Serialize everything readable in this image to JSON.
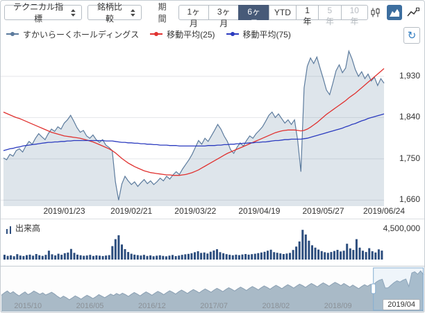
{
  "toolbar": {
    "technical_label": "テクニカル指標",
    "compare_label": "銘柄比較",
    "period_label": "期間",
    "periods": [
      {
        "label": "1ヶ月",
        "state": "normal"
      },
      {
        "label": "3ヶ月",
        "state": "normal"
      },
      {
        "label": "6ヶ月",
        "state": "active"
      },
      {
        "label": "YTD",
        "state": "normal"
      },
      {
        "label": "1年",
        "state": "normal"
      },
      {
        "label": "5年",
        "state": "disabled"
      },
      {
        "label": "10年",
        "state": "disabled"
      }
    ],
    "chart_type_icons": [
      "candlestick-chart-icon",
      "area-chart-icon",
      "line-chart-icon"
    ],
    "active_chart_type": "area-chart-icon"
  },
  "legend": {
    "items": [
      {
        "label": "すかいらーくホールディングス",
        "color": "#5c7b9d"
      },
      {
        "label": "移動平均(25)",
        "color": "#e0312f"
      },
      {
        "label": "移動平均(75)",
        "color": "#2b3bbf"
      }
    ],
    "refresh_icon": "↻"
  },
  "volume": {
    "label": "出来高",
    "scale_label": "4,500,000"
  },
  "chart_data": {
    "price_chart": {
      "type": "area",
      "grid": "horizontal",
      "ylim": [
        1650,
        1995
      ],
      "y_ticks": [
        1930,
        1840,
        1750,
        1660
      ],
      "y_tick_labels": [
        "1,930",
        "1,840",
        "1,750",
        "1,660"
      ],
      "x_labels": [
        {
          "label": "2019/01/23",
          "index": 19
        },
        {
          "label": "2019/02/21",
          "index": 40
        },
        {
          "label": "2019/03/22",
          "index": 60
        },
        {
          "label": "2019/04/19",
          "index": 80
        },
        {
          "label": "2019/05/27",
          "index": 100
        },
        {
          "label": "2019/06/24",
          "index": 119
        }
      ],
      "series": [
        {
          "name": "すかいらーくホールディングス",
          "type": "area",
          "color": "#5c7b9d",
          "fill": "rgba(92,123,157,0.20)",
          "values": [
            1752,
            1748,
            1760,
            1756,
            1768,
            1772,
            1765,
            1778,
            1788,
            1782,
            1795,
            1805,
            1798,
            1792,
            1805,
            1815,
            1810,
            1820,
            1815,
            1828,
            1835,
            1845,
            1832,
            1818,
            1808,
            1812,
            1800,
            1795,
            1802,
            1792,
            1786,
            1792,
            1780,
            1775,
            1768,
            1700,
            1660,
            1695,
            1712,
            1702,
            1694,
            1700,
            1690,
            1698,
            1705,
            1696,
            1702,
            1694,
            1700,
            1708,
            1702,
            1712,
            1706,
            1715,
            1722,
            1716,
            1728,
            1738,
            1748,
            1760,
            1775,
            1790,
            1782,
            1795,
            1788,
            1800,
            1812,
            1825,
            1815,
            1800,
            1788,
            1770,
            1762,
            1775,
            1785,
            1778,
            1790,
            1800,
            1795,
            1805,
            1812,
            1820,
            1832,
            1845,
            1852,
            1840,
            1848,
            1838,
            1828,
            1835,
            1825,
            1835,
            1790,
            1722,
            1905,
            1952,
            1970,
            1958,
            1972,
            1948,
            1925,
            1900,
            1890,
            1915,
            1942,
            1955,
            1938,
            1948,
            1985,
            1968,
            1945,
            1930,
            1940,
            1925,
            1935,
            1920,
            1928,
            1910,
            1925,
            1915
          ]
        },
        {
          "name": "移動平均(25)",
          "type": "line",
          "color": "#e0312f",
          "values": [
            1852,
            1849,
            1846,
            1843,
            1840,
            1838,
            1835,
            1832,
            1829,
            1826,
            1823,
            1820,
            1817,
            1814,
            1811,
            1808,
            1806,
            1804,
            1802,
            1800,
            1799,
            1798,
            1797,
            1796,
            1795,
            1793,
            1791,
            1789,
            1787,
            1784,
            1781,
            1778,
            1775,
            1772,
            1768,
            1763,
            1757,
            1751,
            1746,
            1741,
            1737,
            1733,
            1730,
            1727,
            1724,
            1722,
            1720,
            1719,
            1718,
            1717,
            1716,
            1715,
            1715,
            1714,
            1714,
            1714,
            1715,
            1716,
            1718,
            1720,
            1723,
            1726,
            1730,
            1734,
            1738,
            1742,
            1746,
            1750,
            1754,
            1758,
            1762,
            1765,
            1768,
            1771,
            1774,
            1777,
            1780,
            1783,
            1786,
            1789,
            1792,
            1795,
            1798,
            1801,
            1804,
            1807,
            1809,
            1811,
            1812,
            1813,
            1813,
            1813,
            1812,
            1811,
            1812,
            1815,
            1819,
            1824,
            1829,
            1835,
            1841,
            1847,
            1852,
            1857,
            1862,
            1867,
            1872,
            1877,
            1883,
            1888,
            1893,
            1899,
            1905,
            1911,
            1917,
            1923,
            1929,
            1935,
            1941,
            1947
          ]
        },
        {
          "name": "移動平均(75)",
          "type": "line",
          "color": "#2b3bbf",
          "values": [
            1768,
            1770,
            1772,
            1773,
            1775,
            1776,
            1778,
            1779,
            1780,
            1781,
            1782,
            1783,
            1784,
            1785,
            1786,
            1786,
            1787,
            1787,
            1788,
            1788,
            1789,
            1789,
            1790,
            1790,
            1790,
            1790,
            1790,
            1790,
            1790,
            1790,
            1790,
            1790,
            1789,
            1789,
            1789,
            1788,
            1787,
            1786,
            1786,
            1785,
            1785,
            1784,
            1784,
            1783,
            1783,
            1782,
            1782,
            1781,
            1781,
            1780,
            1780,
            1780,
            1779,
            1779,
            1779,
            1778,
            1778,
            1778,
            1778,
            1778,
            1778,
            1778,
            1778,
            1778,
            1779,
            1779,
            1779,
            1780,
            1780,
            1781,
            1781,
            1782,
            1782,
            1783,
            1783,
            1784,
            1784,
            1785,
            1785,
            1786,
            1786,
            1787,
            1787,
            1788,
            1789,
            1790,
            1790,
            1791,
            1792,
            1792,
            1793,
            1793,
            1793,
            1793,
            1794,
            1795,
            1797,
            1799,
            1801,
            1803,
            1805,
            1807,
            1809,
            1811,
            1813,
            1815,
            1817,
            1820,
            1822,
            1825,
            1827,
            1830,
            1833,
            1835,
            1838,
            1840,
            1842,
            1844,
            1846,
            1848
          ]
        }
      ]
    },
    "volume_chart": {
      "type": "bar",
      "label": "出来高",
      "color": "#2d4e7e",
      "max": 4500000,
      "scale_label": "4,500,000",
      "values": [
        620000,
        480000,
        550000,
        430000,
        700000,
        520000,
        460000,
        580000,
        640000,
        500000,
        720000,
        560000,
        480000,
        610000,
        1150000,
        680000,
        540000,
        760000,
        620000,
        830000,
        910000,
        1380000,
        870000,
        640000,
        560000,
        490000,
        530000,
        610000,
        470000,
        550000,
        500000,
        460000,
        520000,
        580000,
        1750000,
        2650000,
        3150000,
        1950000,
        1350000,
        980000,
        760000,
        640000,
        580000,
        520000,
        610000,
        470000,
        540000,
        430000,
        500000,
        560000,
        480000,
        420000,
        510000,
        590000,
        450000,
        520000,
        610000,
        680000,
        740000,
        820000,
        950000,
        1080000,
        860000,
        920000,
        780000,
        1020000,
        1180000,
        1340000,
        960000,
        820000,
        700000,
        620000,
        560000,
        640000,
        580000,
        660000,
        720000,
        640000,
        700000,
        760000,
        840000,
        920000,
        1010000,
        1150000,
        1280000,
        960000,
        880000,
        800000,
        720000,
        780000,
        860000,
        1240000,
        1680000,
        2350000,
        3850000,
        3250000,
        2450000,
        1850000,
        1550000,
        1300000,
        1100000,
        950000,
        870000,
        980000,
        1120000,
        1260000,
        1050000,
        1150000,
        2050000,
        1450000,
        1250000,
        2650000,
        1550000,
        1150000,
        980000,
        1480000,
        1080000,
        920000,
        1320000,
        1160000
      ]
    },
    "navigator": {
      "type": "area",
      "color": "#a9bac7",
      "stroke": "#8a9fb2",
      "selection": {
        "start_index": 126,
        "end_index": 143
      },
      "x_labels": [
        {
          "label": "2015/10",
          "index": 9
        },
        {
          "label": "2016/05",
          "index": 30
        },
        {
          "label": "2016/12",
          "index": 51
        },
        {
          "label": "2017/07",
          "index": 72
        },
        {
          "label": "2018/02",
          "index": 93
        },
        {
          "label": "2018/09",
          "index": 114
        },
        {
          "label": "2019/04",
          "index": 135,
          "boxed": true
        }
      ],
      "values": [
        1580,
        1620,
        1650,
        1610,
        1640,
        1600,
        1570,
        1605,
        1635,
        1590,
        1615,
        1650,
        1625,
        1595,
        1620,
        1585,
        1605,
        1630,
        1600,
        1560,
        1530,
        1565,
        1540,
        1505,
        1535,
        1570,
        1545,
        1515,
        1550,
        1580,
        1555,
        1525,
        1555,
        1590,
        1565,
        1540,
        1570,
        1600,
        1575,
        1610,
        1585,
        1615,
        1590,
        1560,
        1595,
        1625,
        1600,
        1570,
        1605,
        1635,
        1610,
        1580,
        1615,
        1645,
        1620,
        1590,
        1625,
        1655,
        1630,
        1600,
        1635,
        1665,
        1640,
        1610,
        1645,
        1675,
        1650,
        1620,
        1655,
        1685,
        1660,
        1630,
        1665,
        1695,
        1670,
        1640,
        1675,
        1705,
        1680,
        1650,
        1685,
        1715,
        1690,
        1660,
        1695,
        1725,
        1700,
        1670,
        1705,
        1735,
        1710,
        1680,
        1715,
        1745,
        1720,
        1690,
        1725,
        1755,
        1730,
        1700,
        1735,
        1765,
        1740,
        1710,
        1745,
        1775,
        1750,
        1720,
        1755,
        1785,
        1760,
        1730,
        1765,
        1795,
        1770,
        1740,
        1775,
        1745,
        1715,
        1750,
        1720,
        1690,
        1725,
        1755,
        1730,
        1760,
        1755,
        1800,
        1830,
        1845,
        1700,
        1705,
        1750,
        1790,
        1820,
        1800,
        1830,
        1850,
        1725,
        1950,
        1970,
        1930,
        1985,
        1920
      ]
    }
  }
}
